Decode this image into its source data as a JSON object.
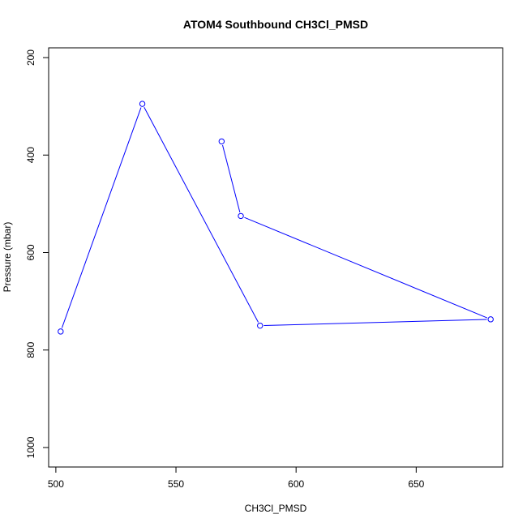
{
  "chart_data": {
    "type": "line",
    "title": "ATOM4 Southbound CH3Cl_PMSD",
    "xlabel": "CH3Cl_PMSD",
    "ylabel": "Pressure (mbar)",
    "xlim": [
      497,
      686
    ],
    "ylim": [
      1040,
      180
    ],
    "y_reversed": true,
    "x_ticks": [
      500,
      550,
      600,
      650
    ],
    "y_ticks": [
      200,
      400,
      600,
      800,
      1000
    ],
    "grid": false,
    "series": [
      {
        "color": "#0000ff",
        "marker": "open-circle",
        "points": [
          {
            "x": 502,
            "y": 762
          },
          {
            "x": 536,
            "y": 295
          },
          {
            "x": 585,
            "y": 750
          },
          {
            "x": 681,
            "y": 737
          },
          {
            "x": 577,
            "y": 525
          },
          {
            "x": 569,
            "y": 372
          }
        ]
      }
    ]
  }
}
